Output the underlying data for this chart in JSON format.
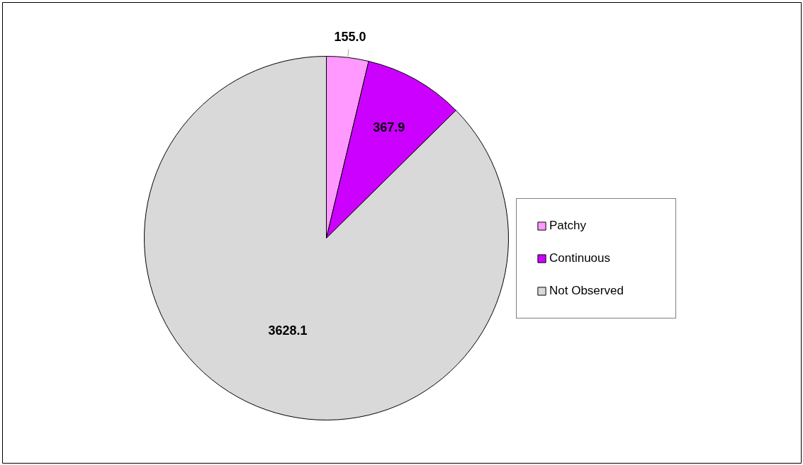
{
  "chart_data": {
    "type": "pie",
    "categories": [
      "Patchy",
      "Continuous",
      "Not Observed"
    ],
    "values": [
      155.0,
      367.9,
      3628.1
    ],
    "colors": [
      "#ff99ff",
      "#cc00ff",
      "#d9d9d9"
    ],
    "value_labels": [
      "155.0",
      "367.9",
      "3628.1"
    ],
    "legend": "right"
  }
}
